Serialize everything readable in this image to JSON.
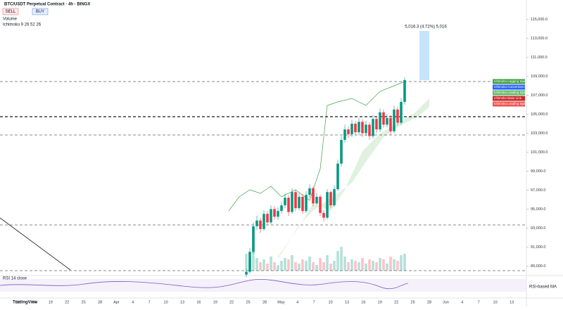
{
  "header": {
    "symbol": "BTC/USDT Perpetual Contract · 4h · BINGX",
    "sell": "SELL",
    "buy": "BUY",
    "indicators": [
      "Volume",
      "Ichimoku 9 26 52 26"
    ]
  },
  "chart": {
    "type": "candlestick",
    "ylim": [
      88000,
      116000
    ],
    "yticks": [
      {
        "value": 89000,
        "label": "89,000.0"
      },
      {
        "value": 91000,
        "label": "91,000.0"
      },
      {
        "value": 93000,
        "label": "93,000.0"
      },
      {
        "value": 95000,
        "label": "95,000.0"
      },
      {
        "value": 97000,
        "label": "97,000.0"
      },
      {
        "value": 99000,
        "label": "99,000.0"
      },
      {
        "value": 101000,
        "label": "101,000.0"
      },
      {
        "value": 103000,
        "label": "103,000.0"
      },
      {
        "value": 105000,
        "label": "105,000.0"
      },
      {
        "value": 107000,
        "label": "107,000.0"
      },
      {
        "value": 109000,
        "label": "109,000.0"
      },
      {
        "value": 111000,
        "label": "111,000.0"
      },
      {
        "value": 113000,
        "label": "113,000.0"
      },
      {
        "value": 115000,
        "label": "115,000.0"
      }
    ],
    "x_labels": [
      "13",
      "16",
      "19",
      "22",
      "25",
      "28",
      "Apr",
      "4",
      "7",
      "10",
      "13",
      "16",
      "19",
      "22",
      "25",
      "28",
      "May",
      "4",
      "7",
      "10",
      "13",
      "16",
      "19",
      "22",
      "25",
      "28",
      "Jun",
      "4",
      "7",
      "10",
      "13"
    ],
    "candles": [
      [
        88100,
        88700,
        87800,
        88400
      ],
      [
        88400,
        90900,
        88200,
        90500
      ],
      [
        90500,
        93600,
        90300,
        93200
      ],
      [
        93200,
        94300,
        92800,
        93800
      ],
      [
        93800,
        94100,
        92500,
        92900
      ],
      [
        92900,
        94900,
        92700,
        94500
      ],
      [
        94500,
        94800,
        93300,
        93600
      ],
      [
        93600,
        95400,
        93400,
        95000
      ],
      [
        95000,
        95300,
        93900,
        94200
      ],
      [
        94200,
        95200,
        93900,
        94800
      ],
      [
        94800,
        95800,
        94500,
        95400
      ],
      [
        95400,
        96700,
        95100,
        96200
      ],
      [
        96200,
        96500,
        94300,
        94700
      ],
      [
        94700,
        97200,
        94500,
        96800
      ],
      [
        96800,
        97000,
        94800,
        95100
      ],
      [
        95100,
        96700,
        94900,
        96300
      ],
      [
        96300,
        96600,
        94500,
        94800
      ],
      [
        94800,
        96900,
        94600,
        96500
      ],
      [
        96500,
        97600,
        96200,
        97200
      ],
      [
        97200,
        97400,
        95300,
        95600
      ],
      [
        95600,
        96700,
        95400,
        96300
      ],
      [
        96300,
        96500,
        94300,
        94600
      ],
      [
        94600,
        94900,
        93700,
        94100
      ],
      [
        94100,
        97100,
        93900,
        96800
      ],
      [
        96800,
        97000,
        95100,
        95400
      ],
      [
        95400,
        97500,
        95200,
        97100
      ],
      [
        97100,
        100200,
        96900,
        99800
      ],
      [
        99800,
        102700,
        99500,
        102300
      ],
      [
        102300,
        103900,
        102000,
        103400
      ],
      [
        103400,
        103700,
        102500,
        102900
      ],
      [
        102900,
        104400,
        102600,
        104000
      ],
      [
        104000,
        104300,
        102800,
        103100
      ],
      [
        103100,
        104600,
        102800,
        104200
      ],
      [
        104200,
        104500,
        102600,
        103000
      ],
      [
        103000,
        104300,
        102700,
        103900
      ],
      [
        103900,
        104200,
        102300,
        102700
      ],
      [
        102700,
        104900,
        102400,
        104500
      ],
      [
        104500,
        104800,
        103000,
        103400
      ],
      [
        103400,
        105600,
        103100,
        105200
      ],
      [
        105200,
        105500,
        103600,
        103900
      ],
      [
        103900,
        105000,
        103600,
        104600
      ],
      [
        104600,
        104900,
        102800,
        103200
      ],
      [
        103200,
        105900,
        103000,
        105500
      ],
      [
        105500,
        105800,
        103800,
        104100
      ],
      [
        104100,
        106700,
        103900,
        106300
      ],
      [
        106300,
        108900,
        106000,
        108600
      ]
    ],
    "volume": [
      60,
      35,
      80,
      45,
      30,
      40,
      25,
      50,
      30,
      20,
      35,
      45,
      40,
      55,
      30,
      25,
      40,
      35,
      50,
      30,
      20,
      45,
      30,
      55,
      25,
      35,
      70,
      85,
      50,
      30,
      40,
      35,
      30,
      45,
      25,
      40,
      35,
      30,
      45,
      40,
      25,
      50,
      40,
      35,
      55,
      60
    ],
    "levels": [
      108444,
      104741,
      102815,
      93333,
      88519
    ],
    "measure": "5,016.3 (4.72%) 5,016",
    "ichimoku_labels": [
      "Ichimoku Lagging Span",
      "Ichimoku Conversion Line",
      "Ichimoku Leading Span A",
      "Ichimoku Base Line",
      "Ichimoku Leading Span B"
    ]
  },
  "rsi": {
    "title": "RSI 14 close",
    "label": "RSI-based MA"
  },
  "brand": "TradingView"
}
